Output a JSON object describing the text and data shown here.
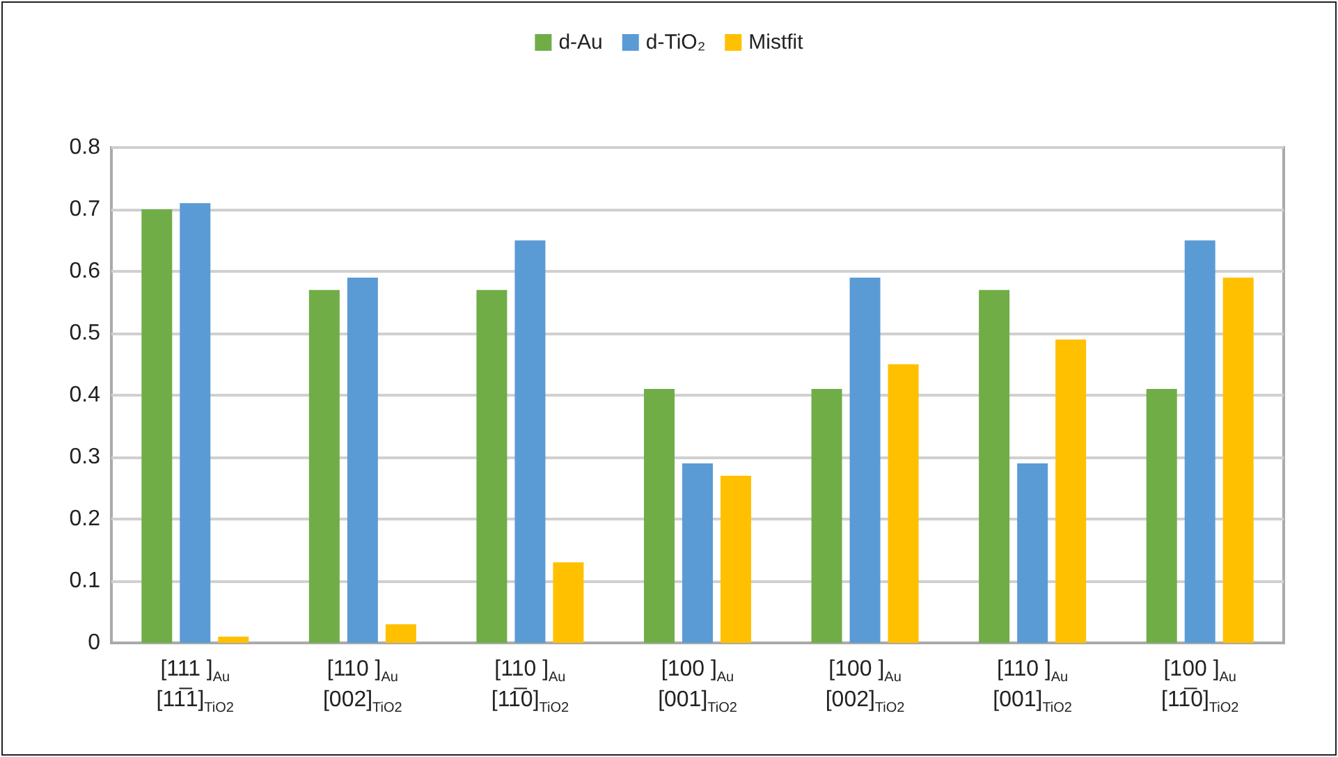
{
  "chart_data": {
    "type": "bar",
    "categories": [
      "[111 ]$_{Au}$\n[11̅1]$_{TiO2}$",
      "[110 ]$_{Au}$\n[002]$_{TiO2}$",
      "[110 ]$_{Au}$\n[11̅0]$_{TiO2}$",
      "[100 ]$_{Au}$\n[001]$_{TiO2}$",
      "[100 ]$_{Au}$\n[002]$_{TiO2}$",
      "[110 ]$_{Au}$\n[001]$_{TiO2}$",
      "[100 ]$_{Au}$\n[11̅0]$_{TiO2}$"
    ],
    "series": [
      {
        "name": "d-Au",
        "color": "#70ad47",
        "values": [
          0.7,
          0.57,
          0.57,
          0.41,
          0.41,
          0.57,
          0.41
        ]
      },
      {
        "name": "d-TiO₂",
        "color": "#5b9bd5",
        "values": [
          0.71,
          0.59,
          0.65,
          0.29,
          0.59,
          0.29,
          0.65
        ]
      },
      {
        "name": "Mistfit",
        "color": "#ffc000",
        "values": [
          0.01,
          0.03,
          0.13,
          0.27,
          0.45,
          0.49,
          0.59
        ]
      }
    ],
    "ylim": [
      0,
      0.8
    ],
    "yticks": [
      0,
      0.1,
      0.2,
      0.3,
      0.4,
      0.5,
      0.6,
      0.7,
      0.8
    ],
    "grid": "y",
    "legend": "top"
  }
}
